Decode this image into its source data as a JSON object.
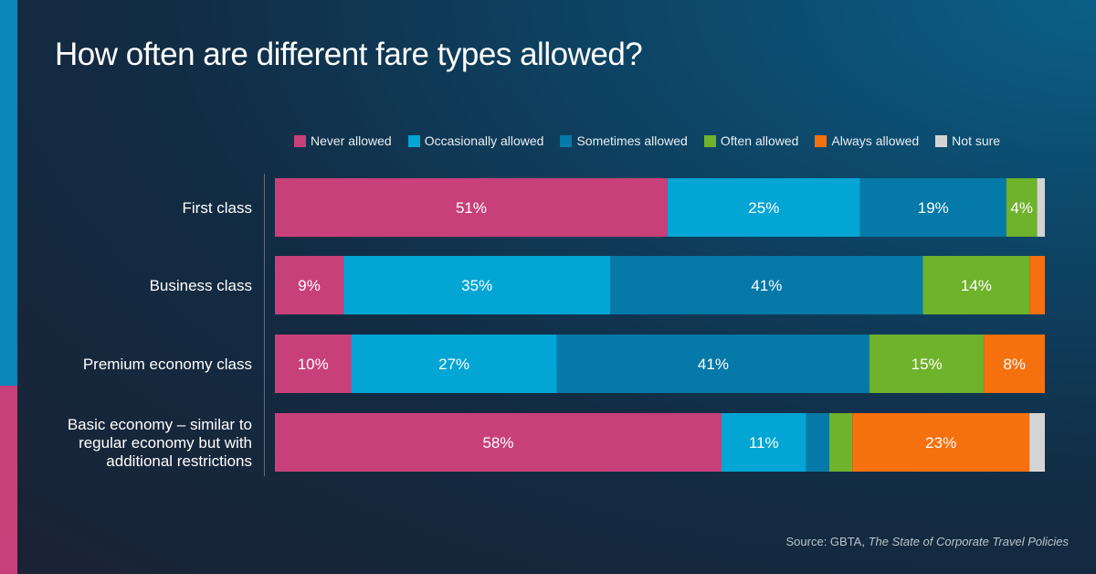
{
  "title": "How often are different fare types allowed?",
  "source": {
    "prefix": "Source: GBTA, ",
    "publication": "The State of Corporate Travel Policies"
  },
  "colors": {
    "Never allowed": "#c8407a",
    "Occasionally allowed": "#02a5d3",
    "Sometimes allowed": "#0579a8",
    "Often allowed": "#6fb22c",
    "Always allowed": "#f5700f",
    "Not sure": "#d4d4d4"
  },
  "chart_data": {
    "type": "bar",
    "orientation": "horizontal",
    "stacked": true,
    "title": "How often are different fare types allowed?",
    "legend_position": "top",
    "categories": [
      "First class",
      "Business class",
      "Premium economy class",
      "Basic economy – similar to regular economy but with additional restrictions"
    ],
    "category_lines": [
      [
        "First class"
      ],
      [
        "Business class"
      ],
      [
        "Premium economy class"
      ],
      [
        "Basic economy – similar to",
        "regular economy but with",
        "additional restrictions"
      ]
    ],
    "series": [
      {
        "name": "Never allowed",
        "values": [
          51,
          9,
          10,
          58
        ],
        "labels": [
          "51%",
          "9%",
          "10%",
          "58%"
        ]
      },
      {
        "name": "Occasionally allowed",
        "values": [
          25,
          35,
          27,
          11
        ],
        "labels": [
          "25%",
          "35%",
          "27%",
          "11%"
        ]
      },
      {
        "name": "Sometimes allowed",
        "values": [
          19,
          41,
          41,
          3
        ],
        "labels": [
          "19%",
          "41%",
          "41%",
          ""
        ]
      },
      {
        "name": "Often allowed",
        "values": [
          4,
          14,
          15,
          3
        ],
        "labels": [
          "4%",
          "14%",
          "15%",
          ""
        ]
      },
      {
        "name": "Always allowed",
        "values": [
          0,
          2,
          8,
          23
        ],
        "labels": [
          "",
          "",
          "8%",
          "23%"
        ]
      },
      {
        "name": "Not sure",
        "values": [
          1,
          0,
          0,
          2
        ],
        "labels": [
          "",
          "",
          "",
          ""
        ]
      }
    ]
  }
}
